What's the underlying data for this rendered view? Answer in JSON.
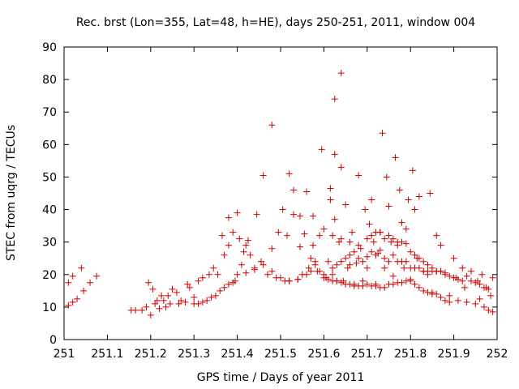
{
  "chart_data": {
    "type": "scatter",
    "title": "Rec. brst (Lon=355, Lat=48, h=HE), days 250-251, 2011, window 004",
    "xlabel": "GPS time / Days of year 2011",
    "ylabel": "STEC from uqrg / TECUs",
    "xlim": [
      251,
      252
    ],
    "ylim": [
      0,
      90
    ],
    "xticks": [
      "251",
      "251.1",
      "251.2",
      "251.3",
      "251.4",
      "251.5",
      "251.6",
      "251.7",
      "251.8",
      "251.9",
      "252"
    ],
    "yticks": [
      "0",
      "10",
      "20",
      "30",
      "40",
      "50",
      "60",
      "70",
      "80",
      "90"
    ],
    "grid": false,
    "marker": "plus",
    "color": "#cc0000",
    "series": [
      {
        "points": [
          [
            251.01,
            10.5
          ],
          [
            251.02,
            11.5
          ],
          [
            251.03,
            12.5
          ],
          [
            251.045,
            15
          ],
          [
            251.06,
            17.5
          ],
          [
            251.075,
            19.5
          ],
          [
            251.01,
            17.5
          ],
          [
            251.02,
            19.5
          ],
          [
            251.04,
            22
          ],
          [
            251.155,
            9
          ],
          [
            251.165,
            9
          ],
          [
            251.18,
            9
          ],
          [
            251.19,
            10
          ],
          [
            251.195,
            17.5
          ],
          [
            251.2,
            7.5
          ],
          [
            251.205,
            15.5
          ],
          [
            251.21,
            11
          ],
          [
            251.215,
            12
          ],
          [
            251.22,
            9.5
          ],
          [
            251.225,
            13.5
          ],
          [
            251.23,
            12
          ],
          [
            251.235,
            10
          ],
          [
            251.24,
            13.5
          ],
          [
            251.245,
            11
          ],
          [
            251.25,
            15.5
          ],
          [
            251.26,
            14.5
          ],
          [
            251.265,
            11
          ],
          [
            251.27,
            12
          ],
          [
            251.28,
            11.5
          ],
          [
            251.285,
            17
          ],
          [
            251.29,
            16
          ],
          [
            251.3,
            13
          ],
          [
            251.31,
            18
          ],
          [
            251.32,
            19
          ],
          [
            251.3,
            11
          ],
          [
            251.31,
            11
          ],
          [
            251.32,
            11.5
          ],
          [
            251.33,
            12
          ],
          [
            251.34,
            13
          ],
          [
            251.35,
            13.5
          ],
          [
            251.36,
            15
          ],
          [
            251.37,
            16
          ],
          [
            251.38,
            17
          ],
          [
            251.39,
            17.5
          ],
          [
            251.335,
            20
          ],
          [
            251.345,
            22
          ],
          [
            251.355,
            20
          ],
          [
            251.365,
            32
          ],
          [
            251.37,
            26
          ],
          [
            251.38,
            29
          ],
          [
            251.38,
            37.5
          ],
          [
            251.39,
            33
          ],
          [
            251.395,
            18
          ],
          [
            251.4,
            39
          ],
          [
            251.405,
            31
          ],
          [
            251.41,
            23
          ],
          [
            251.415,
            27
          ],
          [
            251.42,
            29
          ],
          [
            251.425,
            30.5
          ],
          [
            251.43,
            26
          ],
          [
            251.44,
            22
          ],
          [
            251.445,
            38.5
          ],
          [
            251.455,
            24
          ],
          [
            251.46,
            50.5
          ],
          [
            251.47,
            20
          ],
          [
            251.48,
            28
          ],
          [
            251.48,
            66
          ],
          [
            251.49,
            19
          ],
          [
            251.495,
            33
          ],
          [
            251.505,
            40
          ],
          [
            251.51,
            18
          ],
          [
            251.515,
            32
          ],
          [
            251.52,
            51
          ],
          [
            251.52,
            18
          ],
          [
            251.53,
            38.5
          ],
          [
            251.53,
            46
          ],
          [
            251.54,
            18.5
          ],
          [
            251.545,
            28.5
          ],
          [
            251.545,
            38
          ],
          [
            251.55,
            20
          ],
          [
            251.555,
            32.5
          ],
          [
            251.56,
            45.5
          ],
          [
            251.565,
            22
          ],
          [
            251.57,
            25
          ],
          [
            251.575,
            29
          ],
          [
            251.575,
            38
          ],
          [
            251.58,
            24
          ],
          [
            251.585,
            21
          ],
          [
            251.59,
            32
          ],
          [
            251.595,
            58.5
          ],
          [
            251.6,
            34
          ],
          [
            251.605,
            19
          ],
          [
            251.61,
            24
          ],
          [
            251.615,
            43
          ],
          [
            251.615,
            46.5
          ],
          [
            251.62,
            20
          ],
          [
            251.625,
            37
          ],
          [
            251.625,
            57
          ],
          [
            251.625,
            74
          ],
          [
            251.63,
            18
          ],
          [
            251.635,
            30
          ],
          [
            251.64,
            53
          ],
          [
            251.64,
            82
          ],
          [
            251.645,
            18
          ],
          [
            251.65,
            41.5
          ],
          [
            251.655,
            22
          ],
          [
            251.66,
            26
          ],
          [
            251.665,
            33
          ],
          [
            251.67,
            17
          ],
          [
            251.675,
            23.5
          ],
          [
            251.68,
            50.5
          ],
          [
            251.685,
            28
          ],
          [
            251.69,
            18
          ],
          [
            251.695,
            40
          ],
          [
            251.7,
            22
          ],
          [
            251.705,
            35.5
          ],
          [
            251.71,
            43
          ],
          [
            251.715,
            30
          ],
          [
            251.72,
            17
          ],
          [
            251.725,
            26.5
          ],
          [
            251.73,
            33
          ],
          [
            251.735,
            63.5
          ],
          [
            251.74,
            22
          ],
          [
            251.745,
            50
          ],
          [
            251.75,
            41
          ],
          [
            251.755,
            30
          ],
          [
            251.76,
            19.5
          ],
          [
            251.765,
            56
          ],
          [
            251.77,
            29
          ],
          [
            251.775,
            46
          ],
          [
            251.78,
            36
          ],
          [
            251.785,
            22
          ],
          [
            251.79,
            34
          ],
          [
            251.795,
            43
          ],
          [
            251.8,
            18
          ],
          [
            251.805,
            52
          ],
          [
            251.81,
            40
          ],
          [
            251.815,
            25
          ],
          [
            251.82,
            44
          ],
          [
            251.83,
            21
          ],
          [
            251.84,
            20
          ],
          [
            251.845,
            45
          ],
          [
            251.85,
            14.5
          ],
          [
            251.86,
            32
          ],
          [
            251.87,
            29
          ],
          [
            251.88,
            20.5
          ],
          [
            251.89,
            13.5
          ],
          [
            251.9,
            25
          ],
          [
            251.905,
            19
          ],
          [
            251.91,
            12
          ],
          [
            251.92,
            22
          ],
          [
            251.925,
            16
          ],
          [
            251.93,
            11.5
          ],
          [
            251.94,
            21
          ],
          [
            251.95,
            11
          ],
          [
            251.955,
            18
          ],
          [
            251.96,
            12.5
          ],
          [
            251.965,
            20
          ],
          [
            251.97,
            10
          ],
          [
            251.975,
            16
          ],
          [
            251.98,
            9
          ],
          [
            251.985,
            13.5
          ],
          [
            251.99,
            8.5
          ],
          [
            251.99,
            19
          ],
          [
            251.6,
            19
          ],
          [
            251.61,
            18.5
          ],
          [
            251.62,
            18
          ],
          [
            251.63,
            18
          ],
          [
            251.64,
            17.5
          ],
          [
            251.65,
            17
          ],
          [
            251.66,
            17
          ],
          [
            251.67,
            16.5
          ],
          [
            251.68,
            16.5
          ],
          [
            251.69,
            16.5
          ],
          [
            251.7,
            17
          ],
          [
            251.71,
            16.5
          ],
          [
            251.72,
            16.5
          ],
          [
            251.73,
            16
          ],
          [
            251.74,
            16
          ],
          [
            251.75,
            17
          ],
          [
            251.76,
            17
          ],
          [
            251.77,
            17.5
          ],
          [
            251.78,
            17.5
          ],
          [
            251.79,
            18
          ],
          [
            251.8,
            18.5
          ],
          [
            251.81,
            17
          ],
          [
            251.82,
            16
          ],
          [
            251.83,
            15
          ],
          [
            251.84,
            14.5
          ],
          [
            251.85,
            14
          ],
          [
            251.86,
            14
          ],
          [
            251.87,
            13
          ],
          [
            251.88,
            12
          ],
          [
            251.89,
            11.5
          ],
          [
            251.62,
            22
          ],
          [
            251.63,
            23
          ],
          [
            251.64,
            24
          ],
          [
            251.65,
            25
          ],
          [
            251.66,
            23
          ],
          [
            251.67,
            27
          ],
          [
            251.68,
            25
          ],
          [
            251.69,
            24
          ],
          [
            251.7,
            25.5
          ],
          [
            251.71,
            27
          ],
          [
            251.72,
            26
          ],
          [
            251.73,
            27.5
          ],
          [
            251.74,
            25
          ],
          [
            251.75,
            24
          ],
          [
            251.76,
            26
          ],
          [
            251.77,
            24
          ],
          [
            251.78,
            24
          ],
          [
            251.79,
            24
          ],
          [
            251.8,
            22
          ],
          [
            251.81,
            22
          ],
          [
            251.82,
            22
          ],
          [
            251.83,
            21
          ],
          [
            251.84,
            21
          ],
          [
            251.85,
            21
          ],
          [
            251.86,
            21
          ],
          [
            251.87,
            21
          ],
          [
            251.88,
            20
          ],
          [
            251.89,
            19.5
          ],
          [
            251.9,
            19
          ],
          [
            251.91,
            18.5
          ],
          [
            251.92,
            18
          ],
          [
            251.93,
            19.5
          ],
          [
            251.94,
            18
          ],
          [
            251.95,
            17.5
          ],
          [
            251.96,
            17
          ],
          [
            251.97,
            16
          ],
          [
            251.98,
            15.5
          ],
          [
            251.7,
            31
          ],
          [
            251.71,
            32
          ],
          [
            251.72,
            33
          ],
          [
            251.73,
            33
          ],
          [
            251.74,
            31
          ],
          [
            251.75,
            32
          ],
          [
            251.76,
            31
          ],
          [
            251.77,
            30
          ],
          [
            251.78,
            30
          ],
          [
            251.79,
            29.5
          ],
          [
            251.8,
            27
          ],
          [
            251.81,
            26
          ],
          [
            251.82,
            25
          ],
          [
            251.83,
            24
          ],
          [
            251.84,
            23
          ],
          [
            251.85,
            22
          ],
          [
            251.86,
            21
          ],
          [
            251.87,
            21
          ],
          [
            251.56,
            20
          ],
          [
            251.57,
            21
          ],
          [
            251.58,
            23
          ],
          [
            251.59,
            21
          ],
          [
            251.6,
            20
          ],
          [
            251.62,
            32
          ],
          [
            251.64,
            31
          ],
          [
            251.66,
            30
          ],
          [
            251.68,
            29
          ],
          [
            251.4,
            20
          ],
          [
            251.42,
            20.5
          ],
          [
            251.44,
            21.5
          ],
          [
            251.46,
            23
          ],
          [
            251.48,
            21
          ],
          [
            251.5,
            19
          ],
          [
            251.52,
            18
          ],
          [
            251.54,
            18.5
          ]
        ]
      }
    ]
  }
}
